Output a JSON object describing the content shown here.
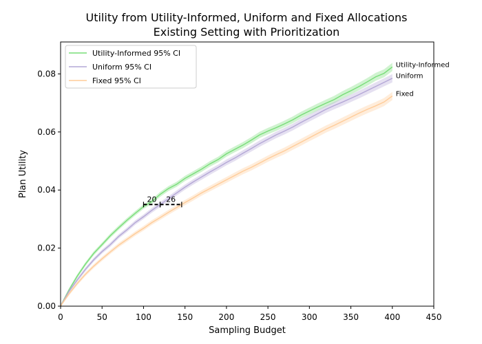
{
  "chart_data": {
    "type": "line",
    "title": "Utility from Utility-Informed, Uniform and Fixed Allocations",
    "subtitle": "Existing Setting with Prioritization",
    "xlabel": "Sampling Budget",
    "ylabel": "Plan Utility",
    "xlim": [
      0,
      450
    ],
    "ylim": [
      0,
      0.091
    ],
    "xticks": [
      0,
      50,
      100,
      150,
      200,
      250,
      300,
      350,
      400,
      450
    ],
    "yticks": [
      "0.00",
      "0.02",
      "0.04",
      "0.06",
      "0.08"
    ],
    "yticks_values": [
      0,
      0.02,
      0.04,
      0.06,
      0.08
    ],
    "grid": false,
    "legend_position": "upper-left",
    "series": [
      {
        "name": "Utility-Informed 95% CI",
        "end_label": "Utility-Informed",
        "color": "#77dd77",
        "x": [
          0,
          10,
          20,
          30,
          40,
          50,
          60,
          70,
          80,
          90,
          100,
          110,
          120,
          130,
          140,
          150,
          160,
          170,
          180,
          190,
          200,
          210,
          220,
          230,
          240,
          250,
          260,
          270,
          280,
          290,
          300,
          310,
          320,
          330,
          340,
          350,
          360,
          370,
          380,
          390,
          400
        ],
        "y": [
          0.0,
          0.0055,
          0.0103,
          0.0145,
          0.0182,
          0.0212,
          0.0243,
          0.027,
          0.0296,
          0.032,
          0.0343,
          0.036,
          0.0385,
          0.0405,
          0.042,
          0.044,
          0.0456,
          0.0472,
          0.049,
          0.0505,
          0.0525,
          0.054,
          0.0555,
          0.0572,
          0.059,
          0.0603,
          0.0615,
          0.0628,
          0.0642,
          0.0658,
          0.0672,
          0.0686,
          0.0699,
          0.0712,
          0.0728,
          0.0742,
          0.0757,
          0.0773,
          0.079,
          0.0802,
          0.0824
        ]
      },
      {
        "name": "Uniform 95% CI",
        "end_label": "Uniform",
        "color": "#b4a7d6",
        "x": [
          0,
          10,
          20,
          30,
          40,
          50,
          60,
          70,
          80,
          90,
          100,
          110,
          120,
          130,
          140,
          150,
          160,
          170,
          180,
          190,
          200,
          210,
          220,
          230,
          240,
          250,
          260,
          270,
          280,
          290,
          300,
          310,
          320,
          330,
          340,
          350,
          360,
          370,
          380,
          390,
          400
        ],
        "y": [
          0.0,
          0.005,
          0.009,
          0.0127,
          0.016,
          0.0188,
          0.0212,
          0.024,
          0.0263,
          0.0288,
          0.0308,
          0.033,
          0.035,
          0.037,
          0.039,
          0.041,
          0.0428,
          0.0445,
          0.0462,
          0.0478,
          0.0495,
          0.051,
          0.0527,
          0.0543,
          0.056,
          0.0575,
          0.059,
          0.0603,
          0.0617,
          0.0633,
          0.0648,
          0.0663,
          0.0678,
          0.0691,
          0.0703,
          0.0716,
          0.0729,
          0.0743,
          0.0757,
          0.0771,
          0.0785
        ]
      },
      {
        "name": "Fixed 95% CI",
        "end_label": "Fixed",
        "color": "#ffcc99",
        "x": [
          0,
          10,
          20,
          30,
          40,
          50,
          60,
          70,
          80,
          90,
          100,
          110,
          120,
          130,
          140,
          150,
          160,
          170,
          180,
          190,
          200,
          210,
          220,
          230,
          240,
          250,
          260,
          270,
          280,
          290,
          300,
          310,
          320,
          330,
          340,
          350,
          360,
          370,
          380,
          390,
          400
        ],
        "y": [
          0.0,
          0.0042,
          0.0078,
          0.011,
          0.0138,
          0.0163,
          0.0187,
          0.021,
          0.023,
          0.025,
          0.0268,
          0.0288,
          0.0305,
          0.0323,
          0.034,
          0.0357,
          0.0373,
          0.039,
          0.0405,
          0.042,
          0.0435,
          0.045,
          0.0465,
          0.0478,
          0.0493,
          0.0508,
          0.0522,
          0.0535,
          0.055,
          0.0565,
          0.058,
          0.0595,
          0.061,
          0.0623,
          0.0637,
          0.0651,
          0.0665,
          0.0678,
          0.069,
          0.0703,
          0.0724
        ]
      }
    ],
    "annotations": [
      {
        "label": "20",
        "x_start": 100,
        "x_end": 120,
        "y": 0.035
      },
      {
        "label": "26",
        "x_start": 120,
        "x_end": 146,
        "y": 0.035
      }
    ]
  }
}
